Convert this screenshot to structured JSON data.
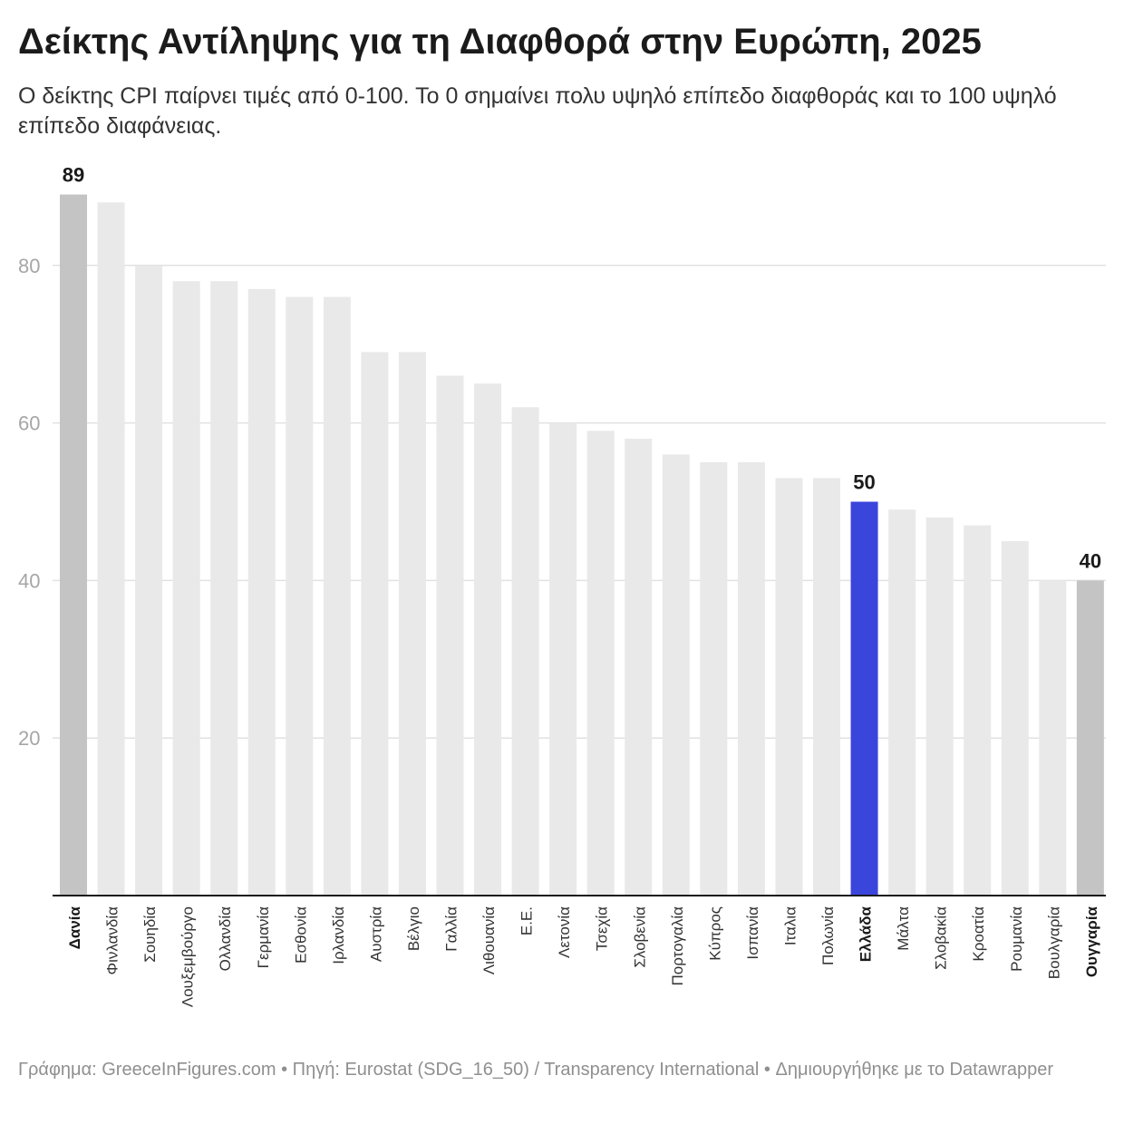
{
  "title": "Δείκτης Αντίληψης για τη Διαφθορά στην Ευρώπη, 2025",
  "subtitle": "Ο δείκτης CPI παίρνει τιμές από 0-100. Το 0 σημαίνει πολυ υψηλό επίπεδο διαφθοράς και το 100 υψηλό επίπεδο διαφάνειας.",
  "footer": "Γράφημα: GreeceInFigures.com • Πηγή: Eurostat (SDG_16_50) / Transparency International • Δημιουργήθηκε με το Datawrapper",
  "colors": {
    "bar_default": "#e9e9e9",
    "bar_extreme": "#c4c4c4",
    "bar_highlight": "#3a45dc",
    "grid": "#e1e1e1",
    "axis": "#1a1a1a",
    "tick_text": "#a6a6a6",
    "label_text": "#333333",
    "value_label": "#1a1a1a"
  },
  "chart_data": {
    "type": "bar",
    "title": "Δείκτης Αντίληψης για τη Διαφθορά στην Ευρώπη, 2025",
    "xlabel": "",
    "ylabel": "",
    "ylim": [
      0,
      95
    ],
    "yticks": [
      20,
      40,
      60,
      80
    ],
    "grid": true,
    "legend": "none",
    "categories": [
      "Δανία",
      "Φινλανδία",
      "Σουηδία",
      "Λουξεμβούργο",
      "Ολλανδία",
      "Γερμανία",
      "Εσθονία",
      "Ιρλανδία",
      "Αυστρία",
      "Βέλγιο",
      "Γαλλία",
      "Λιθουανία",
      "Ε.Ε.",
      "Λετονία",
      "Τσεχία",
      "Σλοβενία",
      "Πορτογαλία",
      "Κύπρος",
      "Ισπανία",
      "Ιταλια",
      "Πολωνία",
      "Ελλάδα",
      "Μάλτα",
      "Σλοβακία",
      "Κροατία",
      "Ρουμανία",
      "Βουλγαρία",
      "Ουγγαρία"
    ],
    "values": [
      89,
      88,
      80,
      78,
      78,
      77,
      76,
      76,
      69,
      69,
      66,
      65,
      62,
      60,
      59,
      58,
      56,
      55,
      55,
      53,
      53,
      50,
      49,
      48,
      47,
      45,
      40,
      40
    ],
    "bar_styles": [
      "extreme",
      "default",
      "default",
      "default",
      "default",
      "default",
      "default",
      "default",
      "default",
      "default",
      "default",
      "default",
      "default",
      "default",
      "default",
      "default",
      "default",
      "default",
      "default",
      "default",
      "default",
      "highlight",
      "default",
      "default",
      "default",
      "default",
      "default",
      "extreme"
    ],
    "labeled_bars": [
      "Δανία",
      "Ελλάδα",
      "Ουγγαρία"
    ],
    "bold_categories": [
      "Δανία",
      "Ελλάδα",
      "Ουγγαρία"
    ]
  }
}
